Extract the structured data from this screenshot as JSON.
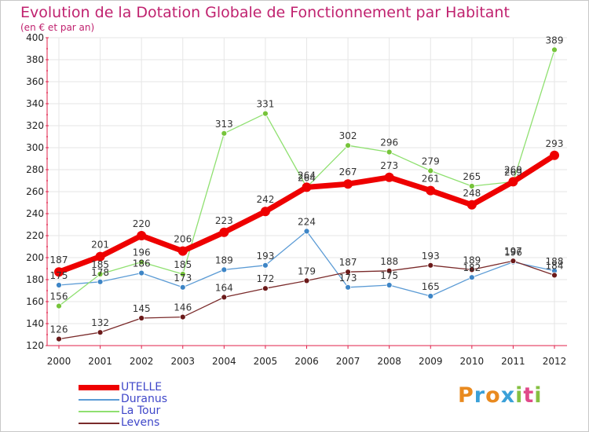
{
  "header": {
    "title": "Evolution de la Dotation Globale de Fonctionnement par Habitant",
    "subtitle": "(en € et par an)"
  },
  "colors": {
    "title": "#c0226f",
    "axis": "#e0204a",
    "grid": "#e6e6e6",
    "legend_text": "#3f47c9"
  },
  "logo": {
    "text": "Proxiti",
    "letters": [
      {
        "char": "P",
        "color": "#e98a1f"
      },
      {
        "char": "r",
        "color": "#3aa0d8"
      },
      {
        "char": "o",
        "color": "#e98a1f"
      },
      {
        "char": "x",
        "color": "#3aa0d8"
      },
      {
        "char": "i",
        "color": "#86c042"
      },
      {
        "char": "t",
        "color": "#e04a8a"
      },
      {
        "char": "i",
        "color": "#86c042"
      }
    ]
  },
  "chart_data": {
    "type": "line",
    "title": "Evolution de la Dotation Globale de Fonctionnement par Habitant",
    "subtitle": "(en € et par an)",
    "x": [
      "2000",
      "2001",
      "2002",
      "2003",
      "2004",
      "2005",
      "2006",
      "2007",
      "2008",
      "2009",
      "2010",
      "2011",
      "2012"
    ],
    "ylim": [
      120,
      400
    ],
    "yticks": [
      120,
      140,
      160,
      180,
      200,
      220,
      240,
      260,
      280,
      300,
      320,
      340,
      360,
      380,
      400
    ],
    "grid": true,
    "legend_position": "bottom-left",
    "series": [
      {
        "name": "UTELLE",
        "color": "#ee0000",
        "marker": "#ee0000",
        "width": 7,
        "values": [
          187,
          201,
          220,
          206,
          223,
          242,
          264,
          267,
          273,
          261,
          248,
          269,
          293
        ]
      },
      {
        "name": "Duranus",
        "color": "#5b9bd5",
        "marker": "#3d85c6",
        "width": 1.3,
        "values": [
          175,
          178,
          186,
          173,
          189,
          193,
          224,
          173,
          175,
          165,
          182,
          196,
          188
        ]
      },
      {
        "name": "La Tour",
        "color": "#8fe070",
        "marker": "#76c43a",
        "width": 1.3,
        "values": [
          156,
          185,
          196,
          185,
          313,
          331,
          264,
          302,
          296,
          279,
          265,
          269,
          389
        ]
      },
      {
        "name": "Levens",
        "color": "#7a2a2a",
        "marker": "#6b1a1a",
        "width": 1.3,
        "values": [
          126,
          132,
          145,
          146,
          164,
          172,
          179,
          187,
          188,
          193,
          189,
          197,
          184
        ]
      }
    ]
  }
}
